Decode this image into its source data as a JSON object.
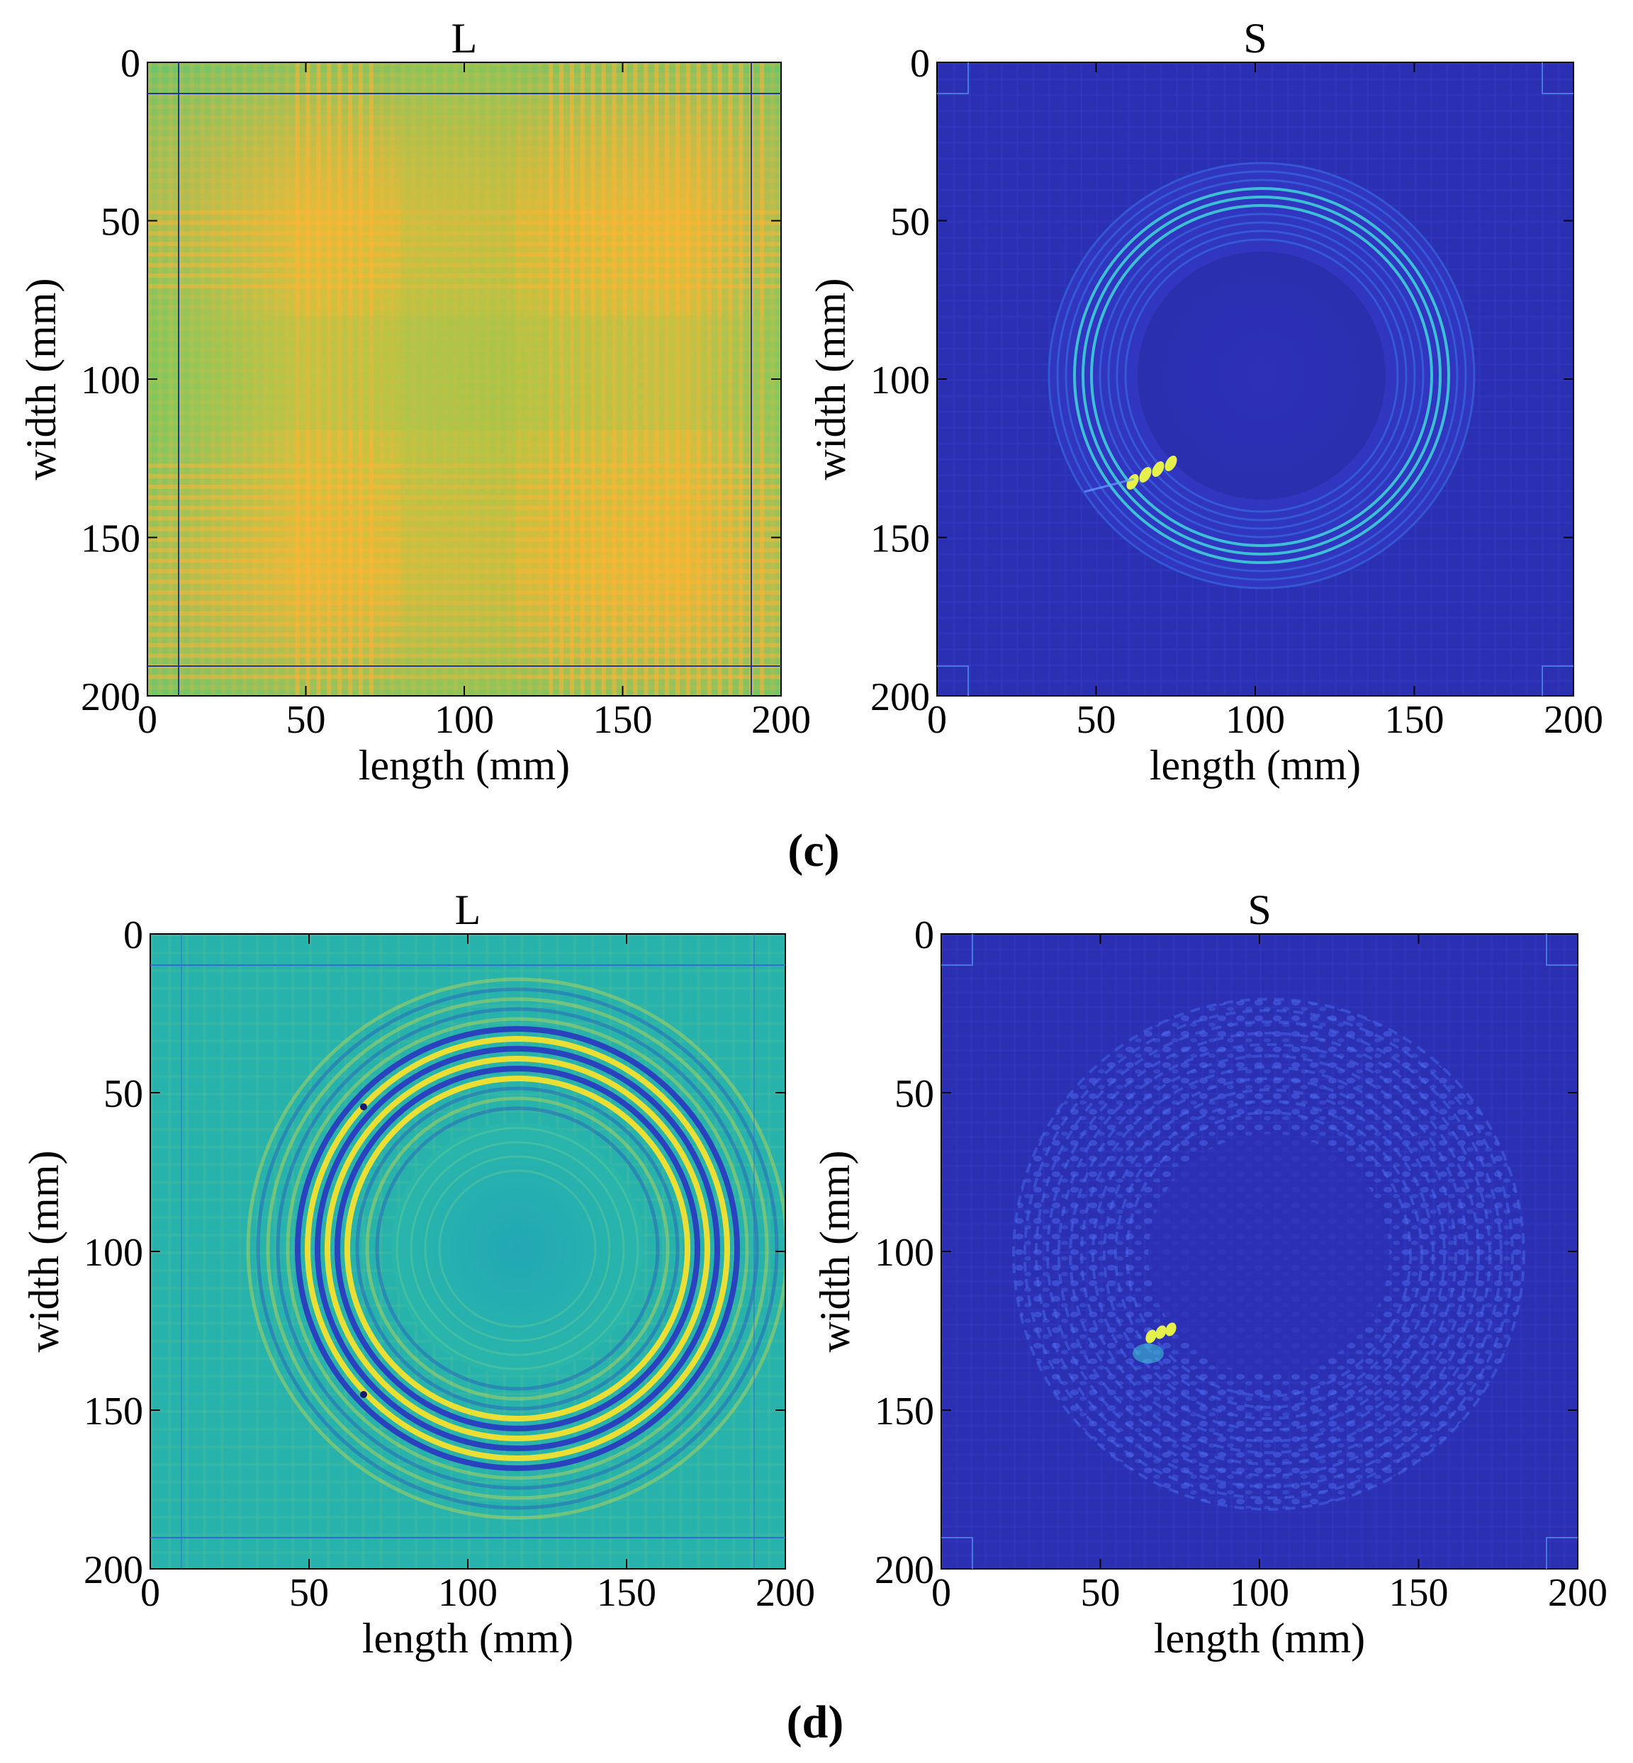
{
  "chart_data": [
    {
      "type": "heatmap",
      "title": "L",
      "xlabel": "length (mm)",
      "ylabel": "width (mm)",
      "xlim": [
        0,
        200
      ],
      "ylim": [
        0,
        200
      ],
      "xticks": [
        0,
        50,
        100,
        150,
        200
      ],
      "yticks": [
        0,
        50,
        100,
        150,
        200
      ],
      "colors": {
        "base": "#9dc84a",
        "stripe": "#ffb535",
        "border": "#1c3c9a"
      }
    },
    {
      "type": "heatmap",
      "title": "S",
      "xlabel": "length (mm)",
      "ylabel": "width (mm)",
      "xlim": [
        0,
        200
      ],
      "ylim": [
        0,
        200
      ],
      "xticks": [
        0,
        50,
        100,
        150,
        200
      ],
      "yticks": [
        0,
        50,
        100,
        150,
        200
      ],
      "colors": {
        "base": "#2a2fb4",
        "ring": "#3ec8d6",
        "spot": "#e6f04a"
      }
    },
    {
      "type": "heatmap",
      "title": "L",
      "xlabel": "length (mm)",
      "ylabel": "width (mm)",
      "xlim": [
        0,
        200
      ],
      "ylim": [
        0,
        200
      ],
      "xticks": [
        0,
        50,
        100,
        150,
        200
      ],
      "yticks": [
        0,
        50,
        100,
        150,
        200
      ],
      "colors": {
        "base": "#25b3ad",
        "ring_hi": "#f5e12e",
        "ring_lo": "#2b3cc0"
      }
    },
    {
      "type": "heatmap",
      "title": "S",
      "xlabel": "length (mm)",
      "ylabel": "width (mm)",
      "xlim": [
        0,
        200
      ],
      "ylim": [
        0,
        200
      ],
      "xticks": [
        0,
        50,
        100,
        150,
        200
      ],
      "yticks": [
        0,
        50,
        100,
        150,
        200
      ],
      "colors": {
        "base": "#2a2fb4",
        "speckle": "#4a68ee",
        "spot": "#e6f04a"
      }
    }
  ],
  "captions": {
    "c": "(c)",
    "d": "(d)"
  }
}
